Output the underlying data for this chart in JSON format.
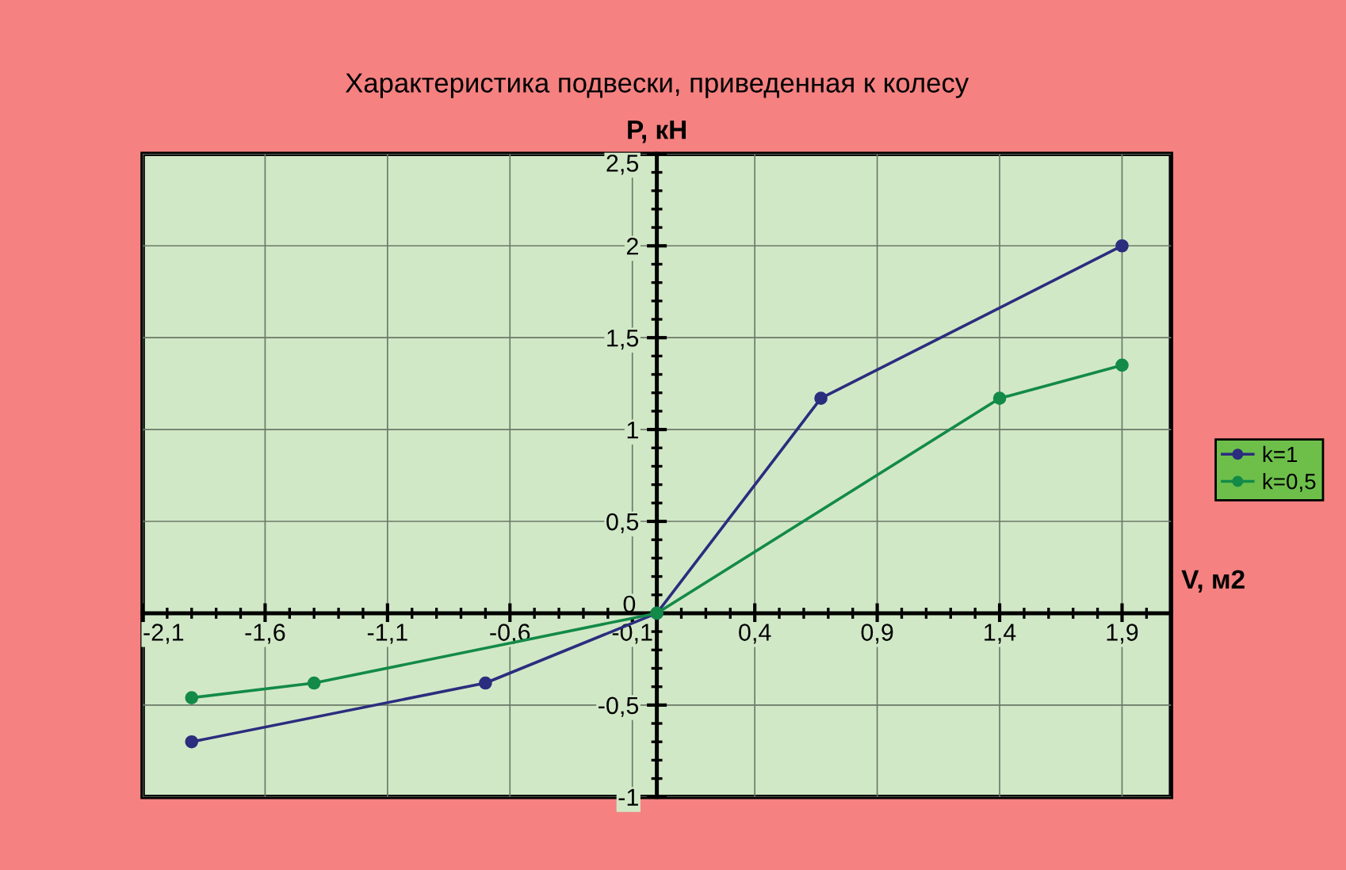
{
  "chart_data": {
    "type": "line",
    "title": "Характеристика подвески, приведенная к колесу",
    "xlabel": "V, м2",
    "ylabel": "P, кН",
    "series": [
      {
        "name": "k=1",
        "color": "#2b2d7e",
        "x": [
          -1.9,
          -0.7,
          0,
          0.67,
          1.9
        ],
        "values": [
          -0.7,
          -0.38,
          0,
          1.17,
          2.0
        ]
      },
      {
        "name": "k=0,5",
        "color": "#138a48",
        "x": [
          -1.9,
          -1.4,
          0,
          1.4,
          1.9
        ],
        "values": [
          -0.46,
          -0.38,
          0,
          1.17,
          1.35
        ]
      }
    ],
    "xlim": [
      -2.1,
      2.1
    ],
    "xticks": [
      {
        "value": -2.1,
        "label": "-2,1"
      },
      {
        "value": -1.6,
        "label": "-1,6"
      },
      {
        "value": -1.1,
        "label": "-1,1"
      },
      {
        "value": -0.6,
        "label": "-0,6"
      },
      {
        "value": -0.1,
        "label": "-0,1"
      },
      {
        "value": 0.4,
        "label": "0,4"
      },
      {
        "value": 0.9,
        "label": "0,9"
      },
      {
        "value": 1.4,
        "label": "1,4"
      },
      {
        "value": 1.9,
        "label": "1,9"
      }
    ],
    "ylim": [
      -1,
      2.5
    ],
    "yticks": [
      -1,
      {
        "value": -0.5,
        "label": "-0,5"
      },
      0,
      {
        "value": 0.5,
        "label": "0,5"
      },
      1,
      {
        "value": 1.5,
        "label": "1,5"
      },
      2,
      {
        "value": 2.5,
        "label": "2,5"
      }
    ],
    "grid": true,
    "legend": "right",
    "marker": "circle",
    "line_style": "solid"
  }
}
